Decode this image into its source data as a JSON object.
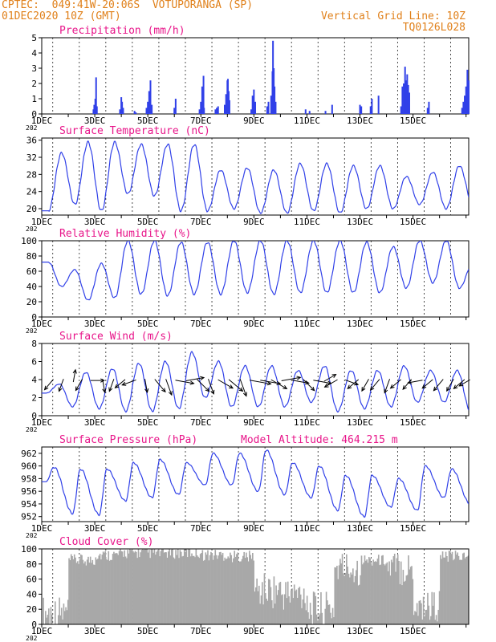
{
  "header": {
    "left_line1": "CPTEC:  049:41W-20:06S  VOTUPORANGA (SP)",
    "left_line2": "01DEC2020 10Z (GMT)",
    "right_line1": "Vertical Grid Line: 10Z",
    "right_line2": "TQ0126L028"
  },
  "x_tick_labels": [
    "1DEC",
    "3DEC",
    "5DEC",
    "7DEC",
    "9DEC",
    "11DEC",
    "13DEC",
    "15DEC"
  ],
  "year_stub": "202",
  "pressure_note": "Model Altitude: 464.215 m",
  "colors": {
    "series": "#3040e8",
    "title": "#e8168a",
    "header": "#e0801a",
    "cloud": "#a8a8a8",
    "grid": "#000000"
  },
  "chart_data": [
    {
      "type": "bar",
      "title": "Precipitation (mm/h)",
      "ylim": [
        0,
        5
      ],
      "yticks": [
        0,
        1,
        2,
        3,
        4,
        5
      ],
      "x_unit": "days since 01DEC 00Z",
      "values": [
        [
          1.95,
          0.3
        ],
        [
          1.98,
          0.6
        ],
        [
          2.02,
          1.0
        ],
        [
          2.05,
          2.4
        ],
        [
          2.08,
          0.5
        ],
        [
          2.95,
          0.3
        ],
        [
          3.0,
          1.1
        ],
        [
          3.03,
          0.8
        ],
        [
          3.07,
          0.4
        ],
        [
          3.5,
          0.2
        ],
        [
          3.55,
          0.1
        ],
        [
          3.95,
          0.4
        ],
        [
          4.0,
          0.8
        ],
        [
          4.05,
          1.5
        ],
        [
          4.1,
          2.2
        ],
        [
          4.15,
          0.6
        ],
        [
          5.0,
          0.4
        ],
        [
          5.05,
          1.0
        ],
        [
          5.95,
          0.3
        ],
        [
          6.0,
          0.8
        ],
        [
          6.05,
          1.8
        ],
        [
          6.1,
          2.5
        ],
        [
          6.12,
          0.4
        ],
        [
          6.55,
          0.3
        ],
        [
          6.6,
          0.4
        ],
        [
          6.65,
          0.5
        ],
        [
          6.9,
          0.6
        ],
        [
          6.95,
          1.3
        ],
        [
          7.0,
          2.2
        ],
        [
          7.02,
          2.3
        ],
        [
          7.05,
          1.5
        ],
        [
          7.08,
          0.9
        ],
        [
          7.9,
          0.3
        ],
        [
          7.95,
          1.2
        ],
        [
          8.0,
          1.6
        ],
        [
          8.05,
          0.8
        ],
        [
          8.5,
          0.5
        ],
        [
          8.55,
          0.8
        ],
        [
          8.65,
          1.2
        ],
        [
          8.7,
          2.8
        ],
        [
          8.72,
          4.8
        ],
        [
          8.75,
          3.0
        ],
        [
          8.78,
          1.8
        ],
        [
          8.82,
          0.8
        ],
        [
          9.95,
          0.3
        ],
        [
          10.1,
          0.2
        ],
        [
          10.7,
          0.2
        ],
        [
          10.95,
          0.6
        ],
        [
          12.0,
          0.6
        ],
        [
          12.05,
          0.5
        ],
        [
          12.4,
          0.5
        ],
        [
          12.45,
          1.0
        ],
        [
          12.7,
          1.2
        ],
        [
          13.55,
          0.5
        ],
        [
          13.6,
          1.8
        ],
        [
          13.65,
          2.0
        ],
        [
          13.7,
          3.1
        ],
        [
          13.74,
          2.2
        ],
        [
          13.78,
          2.6
        ],
        [
          13.82,
          1.9
        ],
        [
          13.86,
          1.4
        ],
        [
          14.55,
          0.4
        ],
        [
          14.6,
          0.8
        ],
        [
          15.85,
          0.4
        ],
        [
          15.9,
          0.8
        ],
        [
          15.95,
          1.2
        ],
        [
          16.0,
          1.8
        ],
        [
          16.05,
          2.9
        ],
        [
          16.1,
          2.2
        ]
      ]
    },
    {
      "type": "line",
      "title": "Surface Temperature (nC)",
      "ylim": [
        18.5,
        36.5
      ],
      "yticks": [
        20,
        24,
        28,
        32,
        36
      ],
      "daily_min_max": [
        [
          19.5,
          33.0
        ],
        [
          21.0,
          35.5
        ],
        [
          19.5,
          35.5
        ],
        [
          23.5,
          35.0
        ],
        [
          23.0,
          35.0
        ],
        [
          19.5,
          35.0
        ],
        [
          19.5,
          29.0
        ],
        [
          20.0,
          29.5
        ],
        [
          19.0,
          29.0
        ],
        [
          19.0,
          30.5
        ],
        [
          19.5,
          30.5
        ],
        [
          19.0,
          30.0
        ],
        [
          20.0,
          30.0
        ],
        [
          20.0,
          27.5
        ],
        [
          21.0,
          28.5
        ],
        [
          20.0,
          30.0
        ],
        [
          21.0,
          31.0
        ]
      ]
    },
    {
      "type": "line",
      "title": "Relative Humidity (%)",
      "ylim": [
        0,
        100
      ],
      "yticks": [
        0,
        20,
        40,
        60,
        80,
        100
      ],
      "daily_min_max": [
        [
          40,
          72
        ],
        [
          22,
          62
        ],
        [
          25,
          70
        ],
        [
          30,
          100
        ],
        [
          28,
          100
        ],
        [
          30,
          98
        ],
        [
          30,
          98
        ],
        [
          32,
          100
        ],
        [
          30,
          100
        ],
        [
          32,
          100
        ],
        [
          32,
          100
        ],
        [
          32,
          100
        ],
        [
          32,
          98
        ],
        [
          38,
          92
        ],
        [
          45,
          100
        ],
        [
          38,
          100
        ],
        [
          40,
          70
        ]
      ]
    },
    {
      "type": "line",
      "title": "Surface Wind (m/s)",
      "ylim": [
        0,
        8
      ],
      "yticks": [
        0,
        2,
        4,
        6,
        8
      ],
      "daily_min_max": [
        [
          2.5,
          3.5
        ],
        [
          1.0,
          4.8
        ],
        [
          0.8,
          5.2
        ],
        [
          0.5,
          5.8
        ],
        [
          0.5,
          6.0
        ],
        [
          0.8,
          7.0
        ],
        [
          2.0,
          6.0
        ],
        [
          1.0,
          5.5
        ],
        [
          1.0,
          5.5
        ],
        [
          1.0,
          5.0
        ],
        [
          1.5,
          5.5
        ],
        [
          0.5,
          5.0
        ],
        [
          0.8,
          5.0
        ],
        [
          1.0,
          5.5
        ],
        [
          1.5,
          5.0
        ],
        [
          1.5,
          5.0
        ],
        [
          0.5,
          4.0
        ]
      ],
      "arrows": [
        [
          0.4,
          220,
          1.0
        ],
        [
          0.8,
          200,
          0.9
        ],
        [
          1.2,
          10,
          0.8
        ],
        [
          1.5,
          210,
          0.9
        ],
        [
          1.9,
          90,
          1.0
        ],
        [
          2.3,
          170,
          1.0
        ],
        [
          2.7,
          200,
          0.9
        ],
        [
          3.1,
          230,
          0.9
        ],
        [
          3.5,
          250,
          1.2
        ],
        [
          3.9,
          170,
          1.0
        ],
        [
          4.3,
          140,
          1.5
        ],
        [
          4.7,
          160,
          1.6
        ],
        [
          5.1,
          100,
          1.9
        ],
        [
          5.5,
          80,
          1.8
        ],
        [
          5.9,
          135,
          1.6
        ],
        [
          6.3,
          160,
          1.4
        ],
        [
          6.7,
          120,
          1.6
        ],
        [
          7.1,
          130,
          1.8
        ],
        [
          7.5,
          160,
          1.8
        ],
        [
          7.9,
          100,
          2.4
        ],
        [
          8.3,
          100,
          2.2
        ],
        [
          8.7,
          120,
          1.8
        ],
        [
          9.1,
          80,
          2.0
        ],
        [
          9.5,
          100,
          1.6
        ],
        [
          9.9,
          135,
          1.4
        ],
        [
          10.3,
          100,
          1.8
        ],
        [
          10.7,
          60,
          1.0
        ],
        [
          11.1,
          240,
          1.2
        ],
        [
          11.5,
          110,
          1.0
        ],
        [
          11.9,
          230,
          1.1
        ],
        [
          12.3,
          210,
          1.0
        ],
        [
          12.7,
          220,
          1.1
        ],
        [
          13.1,
          200,
          1.2
        ],
        [
          13.5,
          230,
          1.0
        ],
        [
          13.9,
          220,
          0.9
        ],
        [
          14.3,
          260,
          1.2
        ],
        [
          14.7,
          230,
          1.0
        ],
        [
          15.1,
          220,
          1.2
        ],
        [
          15.5,
          210,
          1.0
        ],
        [
          15.9,
          230,
          1.1
        ],
        [
          16.1,
          240,
          0.8
        ]
      ]
    },
    {
      "type": "line",
      "title": "Surface Pressure (hPa)",
      "ylim": [
        951.2,
        963.0
      ],
      "yticks": [
        952,
        954,
        956,
        958,
        960,
        962
      ],
      "daily_min_max": [
        [
          957.5,
          959.8
        ],
        [
          952.5,
          959.5
        ],
        [
          952.3,
          959.5
        ],
        [
          954.5,
          960.5
        ],
        [
          955.0,
          961.0
        ],
        [
          955.5,
          960.5
        ],
        [
          957.0,
          962.0
        ],
        [
          957.0,
          962.0
        ],
        [
          956.0,
          962.5
        ],
        [
          955.5,
          960.5
        ],
        [
          955.0,
          960.0
        ],
        [
          953.0,
          958.5
        ],
        [
          952.0,
          958.5
        ],
        [
          953.5,
          958.0
        ],
        [
          953.0,
          960.0
        ],
        [
          955.0,
          959.5
        ],
        [
          954.0,
          958.0
        ]
      ]
    },
    {
      "type": "area",
      "title": "Cloud Cover (%)",
      "ylim": [
        0,
        100
      ],
      "yticks": [
        0,
        20,
        40,
        60,
        80,
        100
      ],
      "daily_mean": [
        15,
        85,
        92,
        95,
        95,
        95,
        92,
        90,
        45,
        40,
        20,
        75,
        85,
        75,
        25,
        90,
        95
      ]
    }
  ]
}
